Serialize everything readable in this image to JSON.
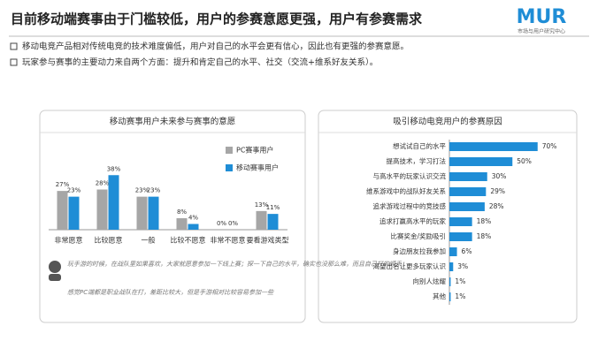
{
  "header": {
    "title": "目前移动端赛事由于门槛较低，用户的参赛意愿更强，用户有参赛需求",
    "logo": "MUR",
    "logo_subtitle": "市场与用户研究中心"
  },
  "bullets": [
    "移动电竞产品相对传统电竞的技术难度偏低，用户对自己的水平会更有信心，因此也有更强的参赛意愿。",
    "玩家参与赛事的主要动力来自两个方面：提升和肯定自己的水平、社交（交流+维系好友关系）。"
  ],
  "quote": [
    "玩手游的时候，在战队里如果喜欢，大家就愿意参加一下线上赛；探一下自己的水平，确实也没那么难，而且自己打的顺手；",
    "感觉PC端都是职业战队在打，差距比较大，但是手游相对比较容易参加一些"
  ],
  "chart_data": [
    {
      "type": "bar",
      "title": "移动赛事用户未来参与赛事的意愿",
      "categories": [
        "非常愿意",
        "比较愿意",
        "一般",
        "比较不愿意",
        "非常不愿意",
        "要看游戏类型"
      ],
      "ylim": [
        0,
        40
      ],
      "series": [
        {
          "name": "PC赛事用户",
          "color": "#a6a6a6",
          "values": [
            27,
            28,
            23,
            8,
            0,
            13
          ],
          "value_labels": [
            "27%",
            "28%",
            "23%",
            "8%",
            "0%",
            "13%"
          ]
        },
        {
          "name": "移动赛事用户",
          "color": "#1f8dd6",
          "values": [
            23,
            38,
            23,
            4,
            0,
            11
          ],
          "value_labels": [
            "23%",
            "38%",
            "23%",
            "4%",
            "0%",
            "11%"
          ]
        }
      ]
    },
    {
      "type": "hbar",
      "title": "吸引移动电竞用户的参赛原因",
      "color": "#1f8dd6",
      "xlim": [
        0,
        80
      ],
      "categories": [
        "想试试自己的水平",
        "提高技术，学习打法",
        "与高水平的玩家认识交流",
        "维系游戏中的战队好友关系",
        "追求游戏过程中的竞技感",
        "追求打赢高水平的玩家",
        "比赛奖金/奖励吸引",
        "身边朋友拉我参加",
        "渴望出名让更多玩家认识",
        "向别人炫耀",
        "其他"
      ],
      "values": [
        70,
        50,
        30,
        29,
        28,
        18,
        18,
        6,
        3,
        1,
        1
      ],
      "value_labels": [
        "70%",
        "50%",
        "30%",
        "29%",
        "28%",
        "18%",
        "18%",
        "6%",
        "3%",
        "1%",
        "1%"
      ]
    }
  ]
}
